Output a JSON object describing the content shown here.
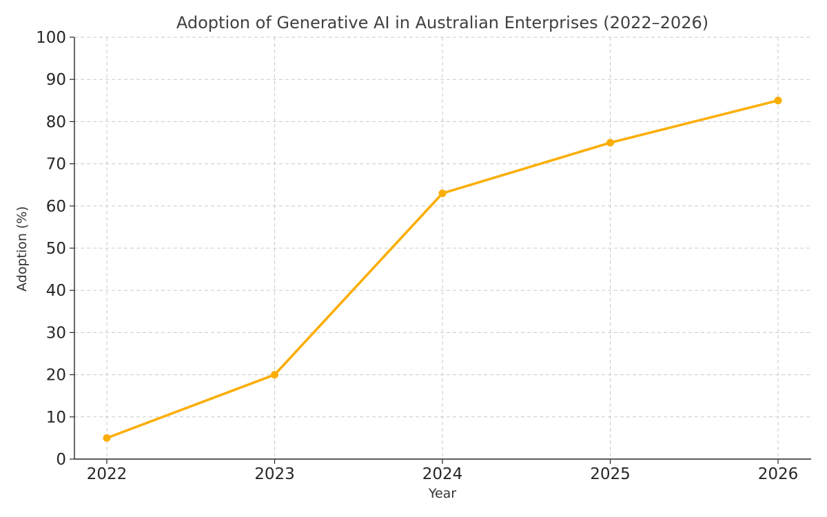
{
  "chart_data": {
    "type": "line",
    "title": "Adoption of Generative AI in Australian Enterprises (2022–2026)",
    "xlabel": "Year",
    "ylabel": "Adoption (%)",
    "categories": [
      "2022",
      "2023",
      "2024",
      "2025",
      "2026"
    ],
    "series": [
      {
        "values": [
          5,
          20,
          63,
          75,
          85
        ],
        "color": "#FBAE06"
      }
    ],
    "ylim": [
      0,
      100
    ],
    "yticks": [
      0,
      10,
      20,
      30,
      40,
      50,
      60,
      70,
      80,
      90,
      100
    ],
    "grid": true,
    "grid_style": "dashed",
    "marker": "circle"
  }
}
